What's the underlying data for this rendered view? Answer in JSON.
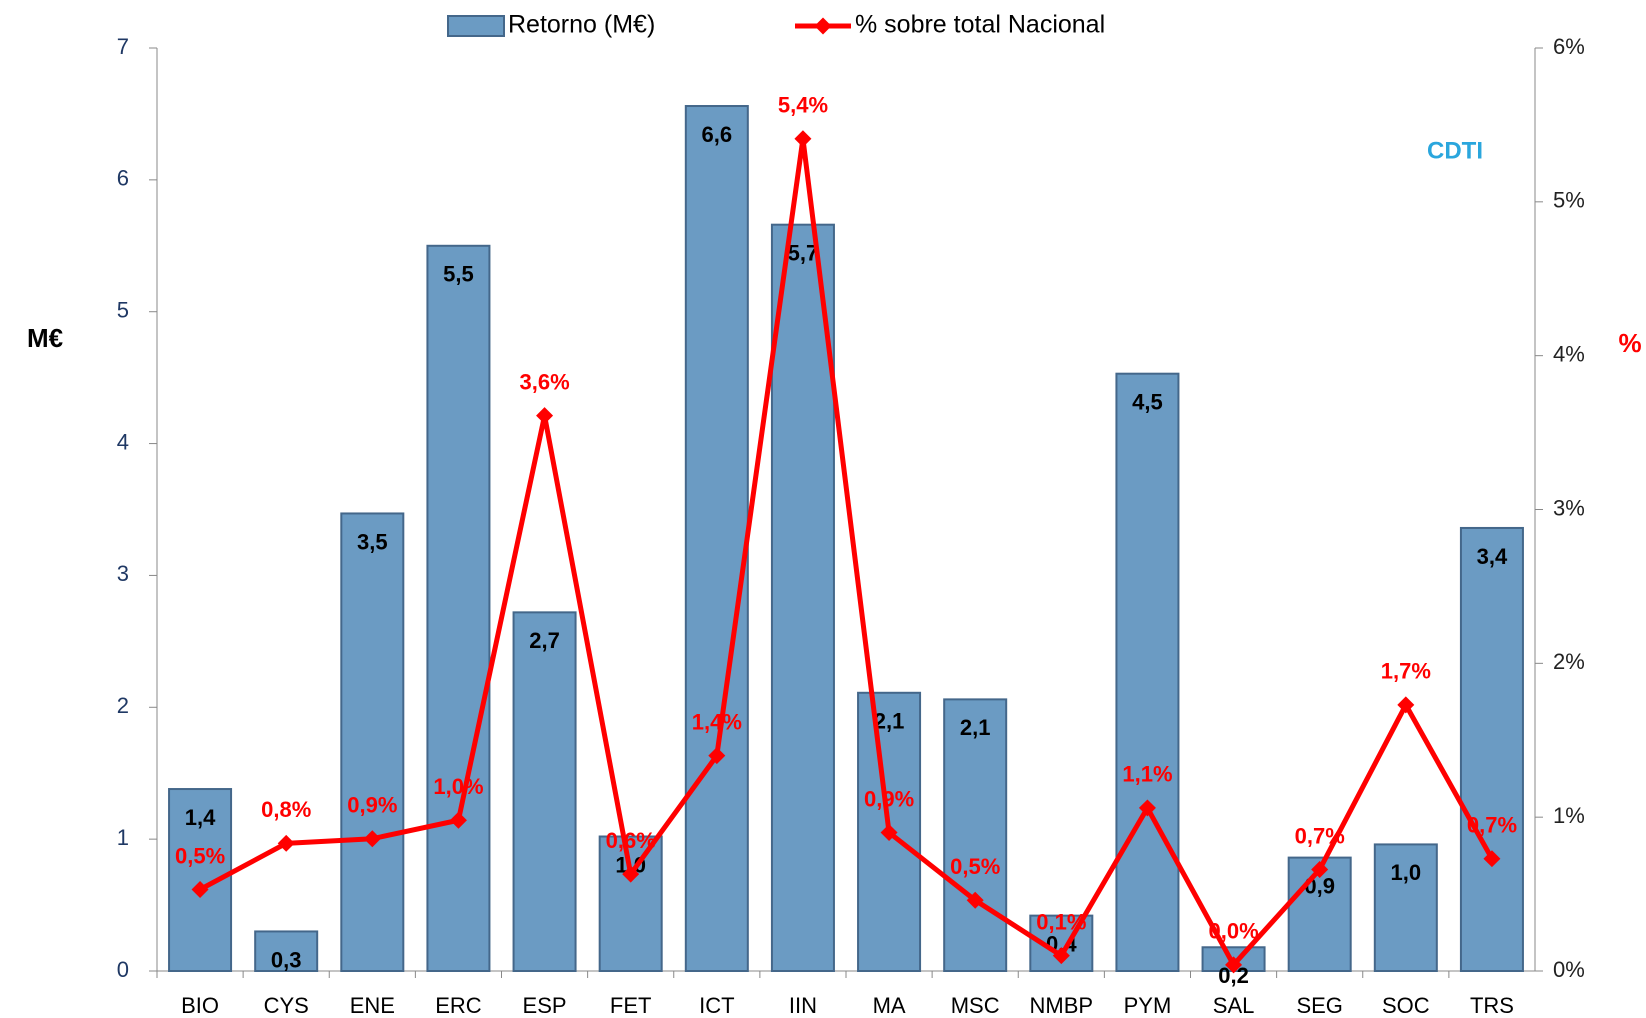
{
  "chart_data": {
    "type": "bar_line",
    "y_label": "M€",
    "y2_label": "%",
    "logo": "CDTI",
    "categories": [
      "BIO",
      "CYS",
      "ENE",
      "ERC",
      "ESP",
      "FET",
      "ICT",
      "IIN",
      "MA",
      "MSC",
      "NMBP",
      "PYM",
      "SAL",
      "SEG",
      "SOC",
      "TRS"
    ],
    "series": [
      {
        "name": "Retorno (M€)",
        "color": "#6b9bc3",
        "type": "bar",
        "values": [
          1.38,
          0.3,
          3.47,
          5.5,
          2.72,
          1.02,
          6.56,
          5.66,
          2.11,
          2.06,
          0.42,
          4.53,
          0.18,
          0.86,
          0.96,
          3.36
        ],
        "value_labels": [
          "1,4",
          "0,3",
          "3,5",
          "5,5",
          "2,7",
          "1,0",
          "6,6",
          "5,7",
          "2,1",
          "2,1",
          "0,4",
          "4,5",
          "0,2",
          "0,9",
          "1,0",
          "3,4"
        ]
      },
      {
        "name": "% sobre total Nacional",
        "color": "#ff0000",
        "type": "line",
        "axis": "y2",
        "values": [
          0.53,
          0.83,
          0.86,
          0.98,
          3.61,
          0.63,
          1.4,
          5.41,
          0.9,
          0.46,
          0.1,
          1.06,
          0.04,
          0.66,
          1.73,
          0.73
        ],
        "value_labels": [
          "0,5%",
          "0,8%",
          "0,9%",
          "1,0%",
          "3,6%",
          "0,6%",
          "1,4%",
          "5,4%",
          "0,9%",
          "0,5%",
          "0,1%",
          "1,1%",
          "0,0%",
          "0,7%",
          "1,7%",
          "0,7%"
        ]
      }
    ],
    "ylim": [
      0,
      7
    ],
    "yticks": [
      0,
      1,
      2,
      3,
      4,
      5,
      6,
      7
    ],
    "y2lim": [
      0,
      6
    ],
    "y2ticks": [
      {
        "value": 0,
        "label": "0%"
      },
      {
        "value": 1,
        "label": "1%"
      },
      {
        "value": 2,
        "label": "2%"
      },
      {
        "value": 3,
        "label": "3%"
      },
      {
        "value": 4,
        "label": "4%"
      },
      {
        "value": 5,
        "label": "5%"
      },
      {
        "value": 6,
        "label": "6%"
      }
    ]
  }
}
